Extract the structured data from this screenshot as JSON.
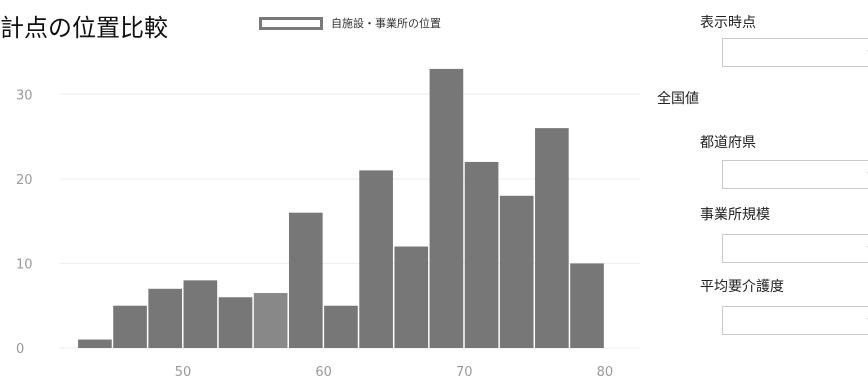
{
  "title": "計点の位置比較",
  "legend": {
    "label": "自施設・事業所の位置"
  },
  "controls": {
    "display_time": {
      "label": "表示時点",
      "value": ""
    },
    "section_label": "全国値",
    "prefecture": {
      "label": "都道府県",
      "value": ""
    },
    "facility_size": {
      "label": "事業所規模",
      "value": ""
    },
    "avg_care_level": {
      "label": "平均要介護度",
      "value": ""
    },
    "arrow": "▼"
  },
  "colors": {
    "bar": "#777777",
    "highlight": "#888888",
    "tick": "#9a9a9a",
    "grid": "#eeeeee"
  },
  "chart_data": {
    "type": "bar",
    "title": "計点の位置比較",
    "xlabel": "",
    "ylabel": "",
    "bin_width": 5,
    "bins": [
      {
        "x": 45,
        "value": 1
      },
      {
        "x": 50,
        "value": 5
      },
      {
        "x": 55,
        "value": 7
      },
      {
        "x": 60,
        "value": 8
      },
      {
        "x": 65,
        "value": 6
      },
      {
        "x": 70,
        "value": 6.5,
        "highlight": true
      },
      {
        "x": 75,
        "value": 16
      },
      {
        "x": 80,
        "value": 5
      },
      {
        "x": 85,
        "value": 21
      },
      {
        "x": 90,
        "value": 12
      },
      {
        "x": 95,
        "value": 33
      },
      {
        "x": 100,
        "value": 22
      },
      {
        "x": 105,
        "value": 18
      },
      {
        "x": 110,
        "value": 26
      },
      {
        "x": 115,
        "value": 10
      }
    ],
    "x_ticks": [
      {
        "value": 60,
        "label": "50"
      },
      {
        "value": 80,
        "label": "60"
      },
      {
        "value": 100,
        "label": "70"
      },
      {
        "value": 120,
        "label": "80"
      }
    ],
    "y_ticks": [
      0,
      10,
      20,
      30
    ],
    "xlim": [
      42.5,
      125
    ],
    "ylim": [
      0,
      35
    ],
    "grid": true,
    "legend": "top"
  }
}
